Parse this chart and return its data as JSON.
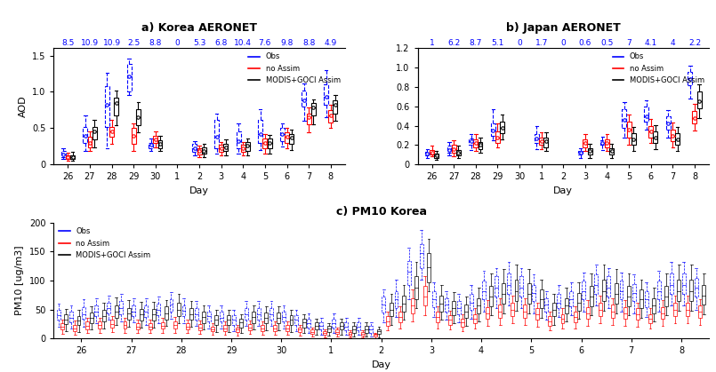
{
  "panel_a_title": "a) Korea AERONET",
  "panel_b_title": "b) Japan AERONET",
  "panel_c_title": "c) PM10 Korea",
  "legend_obs": "Obs",
  "legend_no_assim": "no Assim",
  "legend_assim": "MODIS+GOCI Assim",
  "colors": {
    "obs": "#0000FF",
    "no_assim": "#FF0000",
    "assim": "#000000"
  },
  "xlabel": "Day",
  "ylabel_ab": "AOD",
  "ylabel_c": "PM10 [ug/m3]",
  "panel_a_top_labels": [
    "8.5",
    "10.9",
    "10.9",
    "2.5",
    "8.8",
    "0",
    "5.3",
    "6.8",
    "10.4",
    "7.6",
    "9.8",
    "8.8",
    "4.9"
  ],
  "panel_b_top_labels": [
    "1",
    "6.2",
    "8.7",
    "5.1",
    "0",
    "1.7",
    "0",
    "0.6",
    "0.5",
    "7",
    "4.1",
    "4",
    "2.2"
  ],
  "panel_a_xticks": [
    26,
    27,
    28,
    29,
    30,
    1,
    2,
    3,
    4,
    5,
    6,
    7,
    8
  ],
  "panel_b_xticks": [
    26,
    27,
    28,
    29,
    30,
    1,
    2,
    3,
    4,
    5,
    6,
    7,
    8
  ],
  "panel_c_xticks": [
    26,
    27,
    28,
    29,
    30,
    1,
    2,
    3,
    4,
    5,
    6,
    7,
    8
  ],
  "panel_a_ylim": [
    0,
    1.6
  ],
  "panel_b_ylim": [
    0,
    1.2
  ],
  "panel_c_ylim": [
    0,
    200
  ],
  "panel_a_yticks": [
    0,
    0.5,
    1.0,
    1.5
  ],
  "panel_b_yticks": [
    0,
    0.2,
    0.4,
    0.6,
    0.8,
    1.0,
    1.2
  ],
  "panel_c_yticks": [
    0,
    50,
    100,
    150,
    200
  ],
  "panel_a": {
    "obs": {
      "medians": [
        0.14,
        0.4,
        0.82,
        1.22,
        0.27,
        null,
        0.22,
        0.38,
        0.32,
        0.42,
        0.42,
        0.88,
        0.93
      ],
      "q1": [
        0.1,
        0.3,
        0.52,
        1.0,
        0.22,
        null,
        0.17,
        0.22,
        0.22,
        0.3,
        0.32,
        0.8,
        0.82
      ],
      "q3": [
        0.18,
        0.52,
        1.08,
        1.38,
        0.3,
        null,
        0.28,
        0.62,
        0.46,
        0.62,
        0.5,
        1.02,
        1.1
      ],
      "whislo": [
        0.07,
        0.18,
        0.22,
        0.96,
        0.18,
        null,
        0.13,
        0.15,
        0.15,
        0.2,
        0.25,
        0.6,
        0.65
      ],
      "whishi": [
        0.22,
        0.67,
        1.26,
        1.46,
        0.36,
        null,
        0.32,
        0.7,
        0.56,
        0.76,
        0.56,
        1.12,
        1.3
      ]
    },
    "no_assim": {
      "medians": [
        0.1,
        0.3,
        0.45,
        0.4,
        0.35,
        null,
        0.18,
        0.22,
        0.22,
        0.3,
        0.38,
        0.65,
        0.68
      ],
      "q1": [
        0.08,
        0.24,
        0.38,
        0.28,
        0.3,
        null,
        0.14,
        0.17,
        0.17,
        0.22,
        0.3,
        0.55,
        0.58
      ],
      "q3": [
        0.12,
        0.38,
        0.52,
        0.5,
        0.4,
        null,
        0.22,
        0.27,
        0.27,
        0.36,
        0.44,
        0.7,
        0.75
      ],
      "whislo": [
        0.05,
        0.18,
        0.28,
        0.18,
        0.24,
        null,
        0.1,
        0.13,
        0.13,
        0.15,
        0.22,
        0.44,
        0.5
      ],
      "whishi": [
        0.16,
        0.46,
        0.62,
        0.56,
        0.46,
        null,
        0.26,
        0.31,
        0.31,
        0.42,
        0.5,
        0.78,
        0.82
      ]
    },
    "assim": {
      "medians": [
        0.1,
        0.45,
        0.85,
        0.65,
        0.28,
        null,
        0.19,
        0.24,
        0.26,
        0.3,
        0.37,
        0.78,
        0.82
      ],
      "q1": [
        0.07,
        0.35,
        0.68,
        0.54,
        0.22,
        null,
        0.15,
        0.18,
        0.18,
        0.22,
        0.28,
        0.68,
        0.7
      ],
      "q3": [
        0.13,
        0.52,
        0.92,
        0.76,
        0.33,
        null,
        0.23,
        0.29,
        0.31,
        0.36,
        0.42,
        0.85,
        0.88
      ],
      "whislo": [
        0.05,
        0.24,
        0.54,
        0.44,
        0.18,
        null,
        0.1,
        0.13,
        0.13,
        0.15,
        0.2,
        0.55,
        0.6
      ],
      "whishi": [
        0.17,
        0.62,
        1.02,
        0.86,
        0.39,
        null,
        0.28,
        0.34,
        0.36,
        0.41,
        0.48,
        0.9,
        0.96
      ]
    }
  },
  "panel_b": {
    "obs": {
      "medians": [
        0.11,
        0.15,
        0.24,
        0.35,
        null,
        0.27,
        null,
        0.12,
        0.22,
        0.46,
        0.5,
        0.42,
        0.88
      ],
      "q1": [
        0.09,
        0.12,
        0.2,
        0.3,
        null,
        0.22,
        null,
        0.1,
        0.2,
        0.38,
        0.44,
        0.36,
        0.82
      ],
      "q3": [
        0.13,
        0.19,
        0.27,
        0.42,
        null,
        0.31,
        null,
        0.14,
        0.25,
        0.57,
        0.6,
        0.5,
        0.96
      ],
      "whislo": [
        0.07,
        0.09,
        0.15,
        0.25,
        null,
        0.16,
        null,
        0.07,
        0.15,
        0.28,
        0.36,
        0.28,
        0.68
      ],
      "whishi": [
        0.16,
        0.23,
        0.31,
        0.57,
        null,
        0.4,
        null,
        0.17,
        0.29,
        0.64,
        0.66,
        0.56,
        1.02
      ]
    },
    "no_assim": {
      "medians": [
        0.12,
        0.16,
        0.22,
        0.28,
        null,
        0.24,
        null,
        0.22,
        0.22,
        0.36,
        0.34,
        0.3,
        0.48
      ],
      "q1": [
        0.1,
        0.12,
        0.18,
        0.22,
        null,
        0.2,
        null,
        0.18,
        0.18,
        0.28,
        0.28,
        0.24,
        0.42
      ],
      "q3": [
        0.15,
        0.2,
        0.26,
        0.34,
        null,
        0.28,
        null,
        0.26,
        0.26,
        0.44,
        0.4,
        0.36,
        0.55
      ],
      "whislo": [
        0.08,
        0.08,
        0.14,
        0.18,
        null,
        0.16,
        null,
        0.14,
        0.14,
        0.2,
        0.22,
        0.18,
        0.35
      ],
      "whishi": [
        0.19,
        0.25,
        0.31,
        0.42,
        null,
        0.33,
        null,
        0.31,
        0.31,
        0.52,
        0.47,
        0.43,
        0.63
      ]
    },
    "assim": {
      "medians": [
        0.09,
        0.12,
        0.2,
        0.38,
        null,
        0.24,
        null,
        0.14,
        0.14,
        0.26,
        0.28,
        0.26,
        0.65
      ],
      "q1": [
        0.07,
        0.09,
        0.16,
        0.32,
        null,
        0.18,
        null,
        0.1,
        0.1,
        0.2,
        0.22,
        0.2,
        0.58
      ],
      "q3": [
        0.11,
        0.15,
        0.23,
        0.44,
        null,
        0.28,
        null,
        0.17,
        0.17,
        0.32,
        0.34,
        0.32,
        0.75
      ],
      "whislo": [
        0.05,
        0.07,
        0.12,
        0.26,
        null,
        0.14,
        null,
        0.07,
        0.07,
        0.14,
        0.16,
        0.14,
        0.48
      ],
      "whishi": [
        0.14,
        0.19,
        0.28,
        0.52,
        null,
        0.33,
        null,
        0.21,
        0.21,
        0.39,
        0.41,
        0.39,
        0.83
      ]
    }
  },
  "panel_c_n": 52,
  "panel_c": {
    "obs": {
      "medians": [
        40,
        36,
        42,
        47,
        52,
        52,
        47,
        47,
        50,
        58,
        48,
        42,
        38,
        36,
        32,
        42,
        42,
        42,
        37,
        32,
        27,
        22,
        27,
        20,
        20,
        15,
        58,
        68,
        115,
        148,
        68,
        58,
        52,
        62,
        82,
        88,
        92,
        88,
        78,
        58,
        62,
        68,
        82,
        92,
        88,
        82,
        78,
        68,
        82,
        92,
        92,
        88
      ],
      "q1": [
        32,
        28,
        34,
        39,
        43,
        42,
        39,
        37,
        40,
        47,
        39,
        33,
        29,
        29,
        23,
        33,
        33,
        33,
        29,
        23,
        19,
        16,
        19,
        14,
        14,
        10,
        45,
        52,
        92,
        122,
        54,
        46,
        41,
        50,
        67,
        72,
        77,
        72,
        64,
        46,
        52,
        56,
        67,
        77,
        72,
        67,
        64,
        54,
        67,
        77,
        77,
        72
      ],
      "q3": [
        50,
        46,
        54,
        57,
        62,
        64,
        57,
        57,
        60,
        68,
        57,
        52,
        46,
        46,
        40,
        52,
        52,
        52,
        46,
        40,
        34,
        28,
        34,
        28,
        28,
        22,
        72,
        82,
        133,
        162,
        82,
        70,
        64,
        77,
        100,
        107,
        112,
        107,
        92,
        70,
        77,
        82,
        100,
        110,
        107,
        100,
        94,
        82,
        100,
        112,
        112,
        104
      ],
      "whislo": [
        20,
        17,
        20,
        27,
        32,
        30,
        28,
        24,
        27,
        34,
        27,
        22,
        18,
        17,
        13,
        22,
        22,
        22,
        17,
        13,
        9,
        7,
        9,
        6,
        6,
        4,
        28,
        37,
        67,
        102,
        37,
        32,
        28,
        34,
        47,
        52,
        57,
        52,
        44,
        32,
        37,
        40,
        47,
        57,
        52,
        47,
        44,
        37,
        47,
        57,
        57,
        50
      ],
      "whishi": [
        60,
        57,
        67,
        70,
        74,
        77,
        70,
        70,
        72,
        80,
        70,
        64,
        57,
        57,
        50,
        64,
        64,
        64,
        57,
        50,
        44,
        36,
        44,
        36,
        36,
        28,
        84,
        102,
        157,
        187,
        97,
        82,
        77,
        92,
        117,
        122,
        132,
        122,
        110,
        82,
        92,
        97,
        114,
        127,
        122,
        114,
        110,
        97,
        117,
        132,
        132,
        122
      ]
    },
    "no_assim": {
      "medians": [
        20,
        18,
        22,
        23,
        25,
        23,
        21,
        21,
        22,
        24,
        21,
        19,
        16,
        17,
        15,
        19,
        18,
        18,
        17,
        15,
        11,
        9,
        11,
        8,
        8,
        6,
        30,
        37,
        57,
        72,
        37,
        32,
        28,
        34,
        44,
        47,
        50,
        47,
        42,
        30,
        34,
        37,
        44,
        50,
        47,
        44,
        42,
        34,
        44,
        50,
        50,
        46
      ],
      "q1": [
        15,
        13,
        16,
        17,
        19,
        17,
        16,
        16,
        17,
        18,
        16,
        14,
        12,
        13,
        11,
        14,
        13,
        13,
        13,
        11,
        8,
        6,
        8,
        5,
        5,
        4,
        22,
        28,
        44,
        57,
        28,
        24,
        20,
        26,
        34,
        36,
        38,
        36,
        32,
        22,
        26,
        28,
        34,
        38,
        36,
        34,
        32,
        26,
        34,
        38,
        38,
        35
      ],
      "q3": [
        26,
        24,
        29,
        30,
        32,
        29,
        27,
        27,
        28,
        30,
        27,
        25,
        21,
        23,
        19,
        25,
        24,
        24,
        23,
        19,
        15,
        12,
        15,
        11,
        11,
        8,
        38,
        46,
        70,
        90,
        46,
        40,
        34,
        42,
        54,
        58,
        62,
        58,
        52,
        38,
        42,
        46,
        54,
        62,
        58,
        54,
        52,
        42,
        54,
        62,
        62,
        57
      ],
      "whislo": [
        8,
        7,
        9,
        10,
        11,
        10,
        9,
        9,
        9,
        10,
        9,
        8,
        6,
        7,
        5,
        8,
        7,
        7,
        7,
        5,
        3,
        2,
        3,
        2,
        2,
        1,
        14,
        18,
        30,
        40,
        18,
        15,
        12,
        17,
        22,
        24,
        26,
        24,
        20,
        14,
        17,
        18,
        22,
        26,
        24,
        22,
        20,
        17,
        22,
        26,
        26,
        24
      ],
      "whishi": [
        33,
        31,
        36,
        36,
        39,
        36,
        33,
        33,
        35,
        37,
        33,
        31,
        26,
        29,
        23,
        31,
        30,
        30,
        29,
        23,
        19,
        15,
        19,
        14,
        14,
        10,
        46,
        56,
        84,
        107,
        56,
        48,
        42,
        52,
        66,
        70,
        74,
        70,
        62,
        46,
        52,
        56,
        66,
        74,
        70,
        66,
        62,
        52,
        66,
        74,
        74,
        68
      ]
    },
    "assim": {
      "medians": [
        33,
        31,
        36,
        39,
        46,
        43,
        41,
        41,
        44,
        50,
        42,
        37,
        32,
        32,
        28,
        37,
        36,
        36,
        32,
        28,
        22,
        18,
        22,
        16,
        16,
        12,
        50,
        60,
        88,
        123,
        60,
        52,
        47,
        57,
        72,
        77,
        82,
        77,
        67,
        50,
        57,
        62,
        72,
        82,
        77,
        72,
        67,
        57,
        72,
        82,
        82,
        74
      ],
      "q1": [
        25,
        23,
        27,
        29,
        35,
        33,
        31,
        31,
        33,
        38,
        32,
        27,
        23,
        23,
        19,
        27,
        26,
        26,
        23,
        19,
        15,
        11,
        15,
        10,
        10,
        8,
        38,
        46,
        67,
        97,
        46,
        40,
        36,
        44,
        56,
        60,
        64,
        60,
        52,
        38,
        44,
        48,
        56,
        64,
        60,
        56,
        52,
        44,
        56,
        64,
        64,
        58
      ],
      "q3": [
        41,
        39,
        45,
        49,
        57,
        53,
        51,
        51,
        55,
        62,
        53,
        46,
        40,
        40,
        34,
        46,
        45,
        45,
        40,
        34,
        28,
        22,
        28,
        22,
        22,
        16,
        62,
        74,
        108,
        147,
        74,
        64,
        58,
        70,
        90,
        96,
        102,
        96,
        84,
        62,
        70,
        78,
        90,
        102,
        96,
        90,
        84,
        70,
        90,
        102,
        102,
        92
      ],
      "whislo": [
        13,
        11,
        15,
        17,
        23,
        21,
        19,
        19,
        22,
        26,
        20,
        15,
        11,
        11,
        9,
        15,
        14,
        14,
        11,
        9,
        6,
        5,
        6,
        4,
        4,
        2,
        24,
        32,
        52,
        82,
        32,
        26,
        22,
        30,
        40,
        44,
        48,
        44,
        36,
        24,
        30,
        34,
        40,
        48,
        44,
        40,
        36,
        30,
        40,
        48,
        48,
        42
      ],
      "whishi": [
        51,
        49,
        56,
        61,
        71,
        66,
        63,
        63,
        66,
        77,
        64,
        57,
        50,
        50,
        42,
        57,
        56,
        56,
        50,
        42,
        34,
        27,
        34,
        28,
        28,
        20,
        77,
        92,
        132,
        172,
        92,
        80,
        72,
        87,
        112,
        120,
        127,
        120,
        102,
        77,
        87,
        97,
        112,
        127,
        120,
        112,
        102,
        87,
        112,
        127,
        127,
        112
      ]
    }
  }
}
